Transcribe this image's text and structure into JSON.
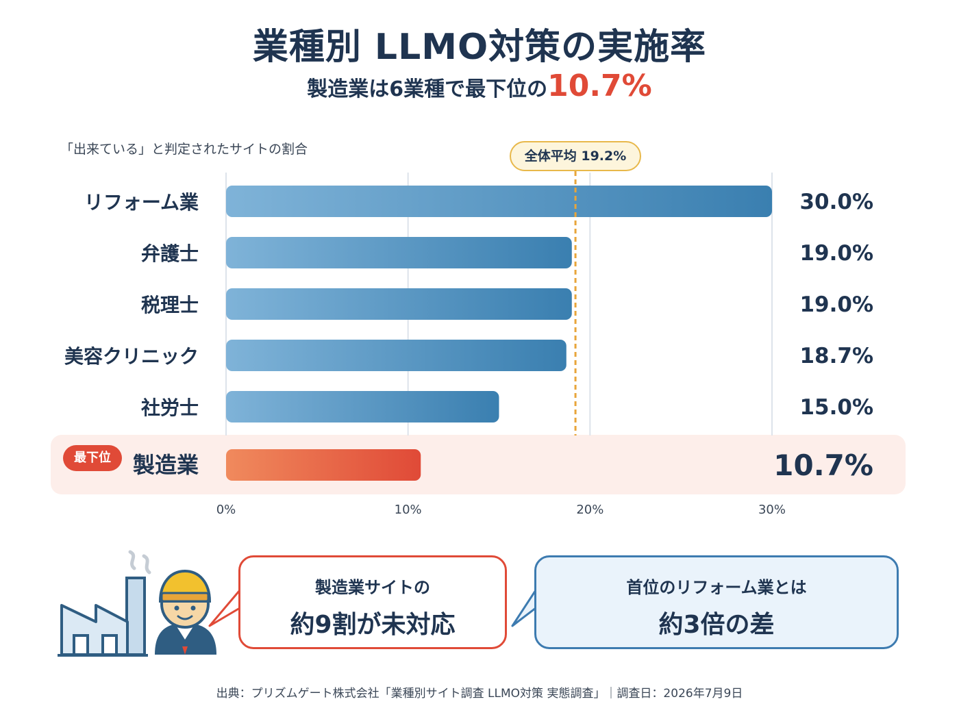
{
  "header": {
    "title": "業種別 LLMO対策の実施率",
    "subtitle_prefix": "製造業は6業種で最下位の",
    "subtitle_highlight": "10.7%"
  },
  "chart_data": {
    "type": "bar",
    "orientation": "horizontal",
    "axis_caption": "「出来ている」と判定されたサイトの割合",
    "categories": [
      "リフォーム業",
      "弁護士",
      "税理士",
      "美容クリニック",
      "社労士",
      "製造業"
    ],
    "values": [
      30.0,
      19.0,
      19.0,
      18.7,
      15.0,
      10.7
    ],
    "value_labels": [
      "30.0%",
      "19.0%",
      "19.0%",
      "18.7%",
      "15.0%",
      "10.7%"
    ],
    "xlim": [
      0,
      30
    ],
    "x_ticks": [
      0,
      10,
      20,
      30
    ],
    "x_tick_labels": [
      "0%",
      "10%",
      "20%",
      "30%"
    ],
    "average": {
      "value": 19.2,
      "label": "全体平均 19.2%"
    },
    "highlight": {
      "category": "製造業",
      "badge": "最下位"
    },
    "grid": true,
    "colors": {
      "bar_start": "#7fb3d8",
      "bar_end": "#3a7fb0",
      "highlight_start": "#f08a5d",
      "highlight_end": "#e04a37",
      "highlight_bg": "#fdeeea",
      "average_line": "#e8a53a"
    }
  },
  "callouts": {
    "left": {
      "small": "製造業サイトの",
      "big": "約9割が未対応"
    },
    "right": {
      "small": "首位のリフォーム業とは",
      "big": "約3倍の差"
    }
  },
  "illustration": {
    "icons": [
      "factory-icon",
      "worker-icon"
    ]
  },
  "footer": {
    "source": "出典：プリズムゲート株式会社「業種別サイト調査 LLMO対策 実態調査」｜調査日：2026年7月9日"
  }
}
